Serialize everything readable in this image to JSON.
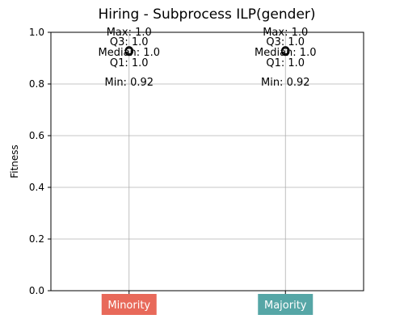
{
  "chart_data": {
    "type": "box",
    "title": "Hiring - Subprocess ILP(gender)",
    "xlabel": "",
    "ylabel": "Fitness",
    "ylim": [
      0,
      1.0
    ],
    "y_ticks": [
      "0.0",
      "0.2",
      "0.4",
      "0.6",
      "0.8",
      "1.0"
    ],
    "grid": true,
    "categories": [
      {
        "label": "Minority",
        "color": "#e8695a",
        "stats": {
          "min": 0.92,
          "q1": 1.0,
          "median": 1.0,
          "q3": 1.0,
          "max": 1.0
        },
        "outliers": [
          0.93,
          0.925
        ],
        "annotations": {
          "max": "Max: 1.0",
          "q3": "Q3: 1.0",
          "median": "Median: 1.0",
          "q1": "Q1: 1.0",
          "min": "Min: 0.92"
        }
      },
      {
        "label": "Majority",
        "color": "#56a6a6",
        "stats": {
          "min": 0.92,
          "q1": 1.0,
          "median": 1.0,
          "q3": 1.0,
          "max": 1.0
        },
        "outliers": [
          0.93,
          0.925
        ],
        "annotations": {
          "max": "Max: 1.0",
          "q3": "Q3: 1.0",
          "median": "Median: 1.0",
          "q1": "Q1: 1.0",
          "min": "Min: 0.92"
        }
      }
    ]
  }
}
